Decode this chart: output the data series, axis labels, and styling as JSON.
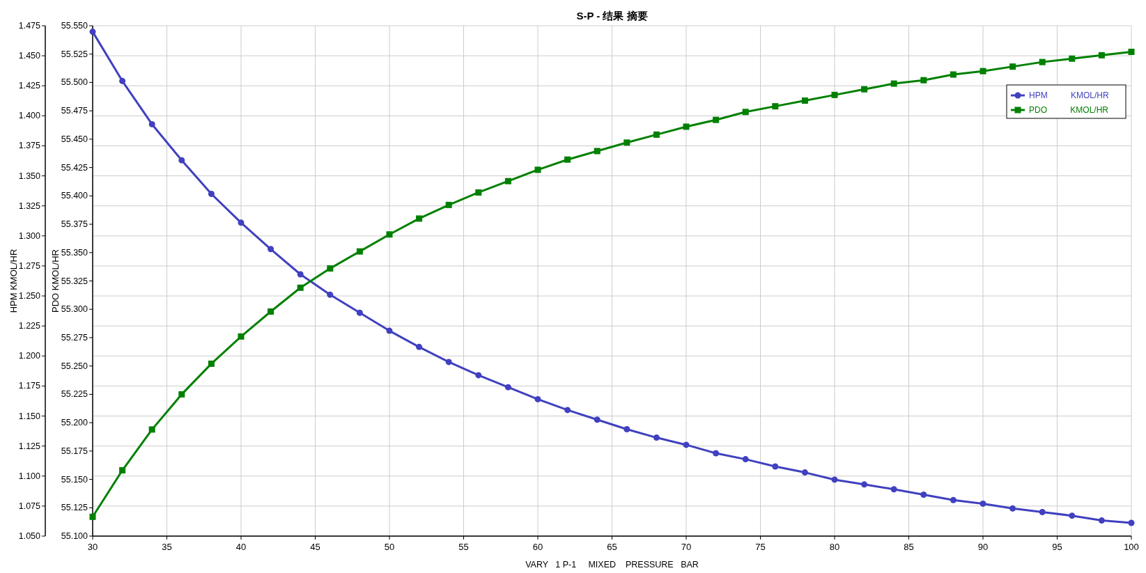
{
  "chart_data": {
    "type": "line",
    "title": "S-P - 结果 摘要",
    "xlabel": "VARY   1 P-1     MIXED    PRESSURE   BAR",
    "ylabel": "HPM KMOL/HR",
    "y2label": "PDO KMOL/HR",
    "x": [
      30,
      32,
      34,
      36,
      38,
      40,
      42,
      44,
      46,
      48,
      50,
      52,
      54,
      56,
      58,
      60,
      62,
      64,
      66,
      68,
      70,
      72,
      74,
      76,
      78,
      80,
      82,
      84,
      86,
      88,
      90,
      92,
      94,
      96,
      98,
      100
    ],
    "series": [
      {
        "name": "HPM          KMOL/HR",
        "color": "#4040c0",
        "marker": "circle",
        "values": [
          1.47,
          1.429,
          1.393,
          1.363,
          1.335,
          1.311,
          1.289,
          1.268,
          1.251,
          1.236,
          1.221,
          1.2075,
          1.195,
          1.184,
          1.174,
          1.164,
          1.155,
          1.147,
          1.139,
          1.132,
          1.126,
          1.119,
          1.114,
          1.108,
          1.103,
          1.097,
          1.093,
          1.089,
          1.0845,
          1.08,
          1.077,
          1.073,
          1.07,
          1.067,
          1.063,
          1.061
        ]
      },
      {
        "name": "PDO          KMOL/HR",
        "color": "#008000",
        "marker": "square",
        "axis": "y2",
        "values": [
          55.117,
          55.158,
          55.194,
          55.225,
          55.252,
          55.276,
          55.298,
          55.319,
          55.336,
          55.351,
          55.366,
          55.38,
          55.392,
          55.403,
          55.413,
          55.423,
          55.432,
          55.4395,
          55.447,
          55.454,
          55.461,
          55.467,
          55.474,
          55.479,
          55.484,
          55.489,
          55.494,
          55.499,
          55.502,
          55.507,
          55.51,
          55.514,
          55.518,
          55.521,
          55.524,
          55.527
        ]
      }
    ],
    "xlim": [
      30,
      100
    ],
    "xticks": [
      30,
      35,
      40,
      45,
      50,
      55,
      60,
      65,
      70,
      75,
      80,
      85,
      90,
      95,
      100
    ],
    "ylim": [
      1.05,
      1.475
    ],
    "yticks": [
      {
        "value": 1.05,
        "label": "1.050"
      },
      {
        "value": 1.075,
        "label": "1.075"
      },
      {
        "value": 1.1,
        "label": "1.100"
      },
      {
        "value": 1.125,
        "label": "1.125"
      },
      {
        "value": 1.15,
        "label": "1.150"
      },
      {
        "value": 1.175,
        "label": "1.175"
      },
      {
        "value": 1.2,
        "label": "1.200"
      },
      {
        "value": 1.225,
        "label": "1.225"
      },
      {
        "value": 1.25,
        "label": "1.250"
      },
      {
        "value": 1.275,
        "label": "1.275"
      },
      {
        "value": 1.3,
        "label": "1.300"
      },
      {
        "value": 1.325,
        "label": "1.325"
      },
      {
        "value": 1.35,
        "label": "1.350"
      },
      {
        "value": 1.375,
        "label": "1.375"
      },
      {
        "value": 1.4,
        "label": "1.400"
      },
      {
        "value": 1.425,
        "label": "1.425"
      },
      {
        "value": 1.45,
        "label": "1.450"
      },
      {
        "value": 1.475,
        "label": "1.475"
      }
    ],
    "y2lim": [
      55.1,
      55.55
    ],
    "y2ticks": [
      {
        "value": 55.1,
        "label": "55.100"
      },
      {
        "value": 55.125,
        "label": "55.125"
      },
      {
        "value": 55.15,
        "label": "55.150"
      },
      {
        "value": 55.175,
        "label": "55.175"
      },
      {
        "value": 55.2,
        "label": "55.200"
      },
      {
        "value": 55.225,
        "label": "55.225"
      },
      {
        "value": 55.25,
        "label": "55.250"
      },
      {
        "value": 55.275,
        "label": "55.275"
      },
      {
        "value": 55.3,
        "label": "55.300"
      },
      {
        "value": 55.325,
        "label": "55.325"
      },
      {
        "value": 55.35,
        "label": "55.350"
      },
      {
        "value": 55.375,
        "label": "55.375"
      },
      {
        "value": 55.4,
        "label": "55.400"
      },
      {
        "value": 55.425,
        "label": "55.425"
      },
      {
        "value": 55.45,
        "label": "55.450"
      },
      {
        "value": 55.475,
        "label": "55.475"
      },
      {
        "value": 55.5,
        "label": "55.500"
      },
      {
        "value": 55.525,
        "label": "55.525"
      },
      {
        "value": 55.55,
        "label": "55.550"
      }
    ],
    "grid": true,
    "legend": "top right",
    "line_style": "solid"
  }
}
